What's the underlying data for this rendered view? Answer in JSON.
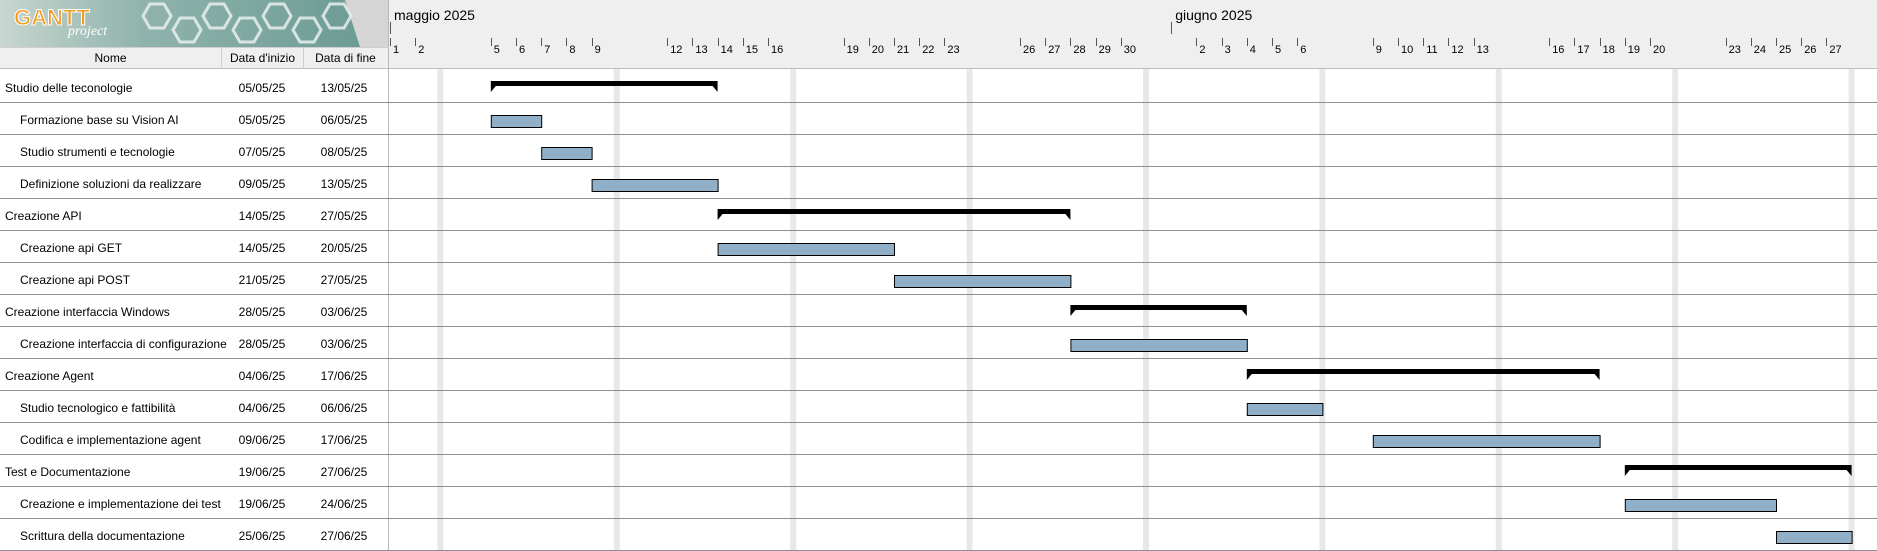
{
  "app": {
    "logo_word": "GANTT",
    "logo_sub": "project"
  },
  "table": {
    "headers": {
      "name": "Nome",
      "start": "Data d'inizio",
      "end": "Data di fine"
    }
  },
  "timeline": {
    "months": [
      {
        "label": "maggio 2025",
        "offset": 0
      },
      {
        "label": "giugno 2025",
        "offset": 31
      }
    ],
    "days": [
      {
        "label": "1",
        "offset": 0
      },
      {
        "label": "2",
        "offset": 1
      },
      {
        "label": "5",
        "offset": 4
      },
      {
        "label": "6",
        "offset": 5
      },
      {
        "label": "7",
        "offset": 6
      },
      {
        "label": "8",
        "offset": 7
      },
      {
        "label": "9",
        "offset": 8
      },
      {
        "label": "12",
        "offset": 11
      },
      {
        "label": "13",
        "offset": 12
      },
      {
        "label": "14",
        "offset": 13
      },
      {
        "label": "15",
        "offset": 14
      },
      {
        "label": "16",
        "offset": 15
      },
      {
        "label": "19",
        "offset": 18
      },
      {
        "label": "20",
        "offset": 19
      },
      {
        "label": "21",
        "offset": 20
      },
      {
        "label": "22",
        "offset": 21
      },
      {
        "label": "23",
        "offset": 22
      },
      {
        "label": "26",
        "offset": 25
      },
      {
        "label": "27",
        "offset": 26
      },
      {
        "label": "28",
        "offset": 27
      },
      {
        "label": "29",
        "offset": 28
      },
      {
        "label": "30",
        "offset": 29
      },
      {
        "label": "2",
        "offset": 32
      },
      {
        "label": "3",
        "offset": 33
      },
      {
        "label": "4",
        "offset": 34
      },
      {
        "label": "5",
        "offset": 35
      },
      {
        "label": "6",
        "offset": 36
      },
      {
        "label": "9",
        "offset": 39
      },
      {
        "label": "10",
        "offset": 40
      },
      {
        "label": "11",
        "offset": 41
      },
      {
        "label": "12",
        "offset": 42
      },
      {
        "label": "13",
        "offset": 43
      },
      {
        "label": "16",
        "offset": 46
      },
      {
        "label": "17",
        "offset": 47
      },
      {
        "label": "18",
        "offset": 48
      },
      {
        "label": "19",
        "offset": 49
      },
      {
        "label": "20",
        "offset": 50
      },
      {
        "label": "23",
        "offset": 53
      },
      {
        "label": "24",
        "offset": 54
      },
      {
        "label": "25",
        "offset": 55
      },
      {
        "label": "26",
        "offset": 56
      },
      {
        "label": "27",
        "offset": 57
      }
    ],
    "weekends": [
      2,
      9,
      16,
      23,
      30,
      37,
      44,
      51,
      58
    ]
  },
  "tasks": [
    {
      "name": "Studio delle teconologie",
      "start": "05/05/25",
      "end": "13/05/25",
      "level": 0,
      "s": 4,
      "e": 13
    },
    {
      "name": "Formazione base su Vision AI",
      "start": "05/05/25",
      "end": "06/05/25",
      "level": 1,
      "s": 4,
      "e": 6
    },
    {
      "name": "Studio strumenti e tecnologie",
      "start": "07/05/25",
      "end": "08/05/25",
      "level": 1,
      "s": 6,
      "e": 8
    },
    {
      "name": "Definizione soluzioni da realizzare",
      "start": "09/05/25",
      "end": "13/05/25",
      "level": 1,
      "s": 8,
      "e": 13
    },
    {
      "name": "Creazione API",
      "start": "14/05/25",
      "end": "27/05/25",
      "level": 0,
      "s": 13,
      "e": 27
    },
    {
      "name": "Creazione api GET",
      "start": "14/05/25",
      "end": "20/05/25",
      "level": 1,
      "s": 13,
      "e": 20
    },
    {
      "name": "Creazione api POST",
      "start": "21/05/25",
      "end": "27/05/25",
      "level": 1,
      "s": 20,
      "e": 27
    },
    {
      "name": "Creazione interfaccia Windows",
      "start": "28/05/25",
      "end": "03/06/25",
      "level": 0,
      "s": 27,
      "e": 34
    },
    {
      "name": "Creazione interfaccia di configurazione",
      "start": "28/05/25",
      "end": "03/06/25",
      "level": 1,
      "s": 27,
      "e": 34
    },
    {
      "name": "Creazione Agent",
      "start": "04/06/25",
      "end": "17/06/25",
      "level": 0,
      "s": 34,
      "e": 48
    },
    {
      "name": "Studio tecnologico e fattibilità",
      "start": "04/06/25",
      "end": "06/06/25",
      "level": 1,
      "s": 34,
      "e": 37
    },
    {
      "name": "Codifica e implementazione agent",
      "start": "09/06/25",
      "end": "17/06/25",
      "level": 1,
      "s": 39,
      "e": 48
    },
    {
      "name": "Test e Documentazione",
      "start": "19/06/25",
      "end": "27/06/25",
      "level": 0,
      "s": 49,
      "e": 58
    },
    {
      "name": "Creazione e implementazione dei test",
      "start": "19/06/25",
      "end": "24/06/25",
      "level": 1,
      "s": 49,
      "e": 55
    },
    {
      "name": "Scrittura della documentazione",
      "start": "25/06/25",
      "end": "27/06/25",
      "level": 1,
      "s": 55,
      "e": 58
    }
  ],
  "colors": {
    "task_bar": "#8fb0c8",
    "summary_bar": "#000000",
    "header_bg": "#efefef",
    "weekend": "#e8e8e8"
  }
}
